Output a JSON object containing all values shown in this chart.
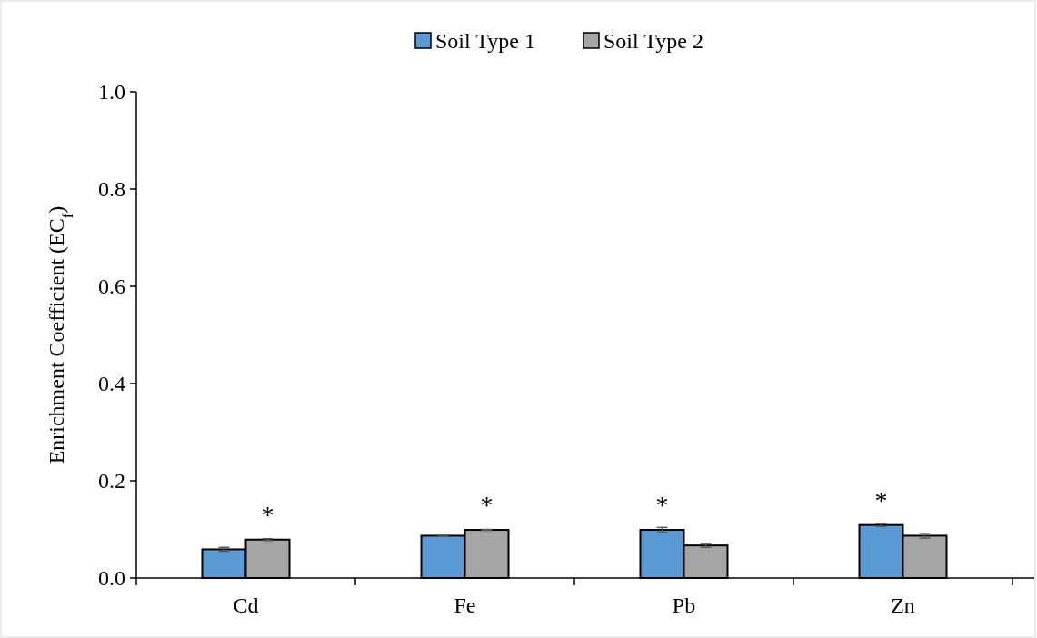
{
  "chart_data": {
    "type": "bar",
    "ylabel": "Enrichment Coefficient (EC$_{f}$)",
    "categories": [
      "Cd",
      "Fe",
      "Pb",
      "Zn"
    ],
    "series": [
      {
        "name": "Soil Type 1",
        "color": "#5b9bd5",
        "values": [
          0.059,
          0.087,
          0.099,
          0.109
        ],
        "errors": [
          0.004,
          0.001,
          0.005,
          0.003
        ]
      },
      {
        "name": "Soil Type 2",
        "color": "#a5a5a5",
        "values": [
          0.079,
          0.099,
          0.067,
          0.087
        ],
        "errors": [
          0.002,
          0.001,
          0.004,
          0.005
        ]
      }
    ],
    "ylim": [
      0,
      1
    ],
    "yticks": [
      {
        "value": 0,
        "label": "0.0"
      },
      {
        "value": 0.2,
        "label": "0.2"
      },
      {
        "value": 0.4,
        "label": "0.4"
      },
      {
        "value": 0.6,
        "label": "0.6"
      },
      {
        "value": 0.8,
        "label": "0.8"
      },
      {
        "value": 1,
        "label": "1.0"
      }
    ],
    "grid": false,
    "legend": "top",
    "annotations": [
      "*",
      "*",
      "*",
      "*"
    ]
  }
}
